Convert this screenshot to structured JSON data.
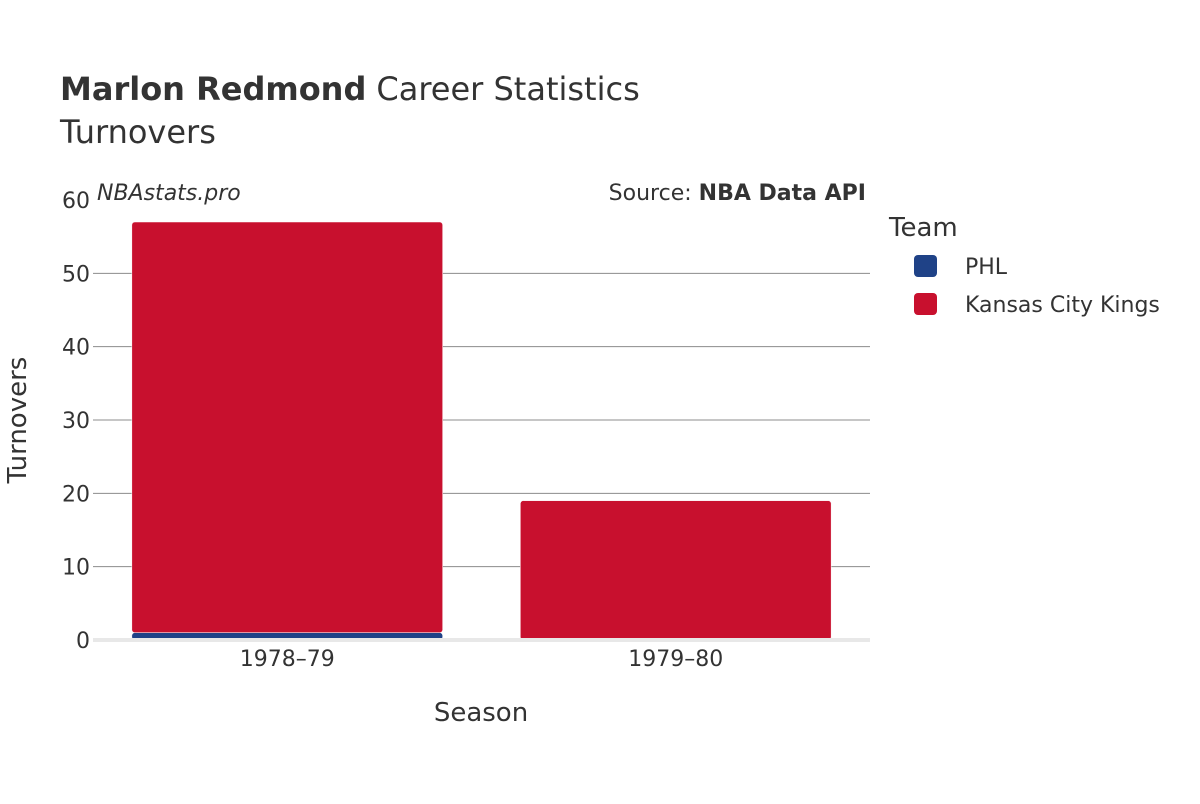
{
  "chart_data": {
    "type": "bar",
    "stacked": true,
    "title_bold": "Marlon Redmond",
    "title_rest": "Career Statistics",
    "subtitle": "Turnovers",
    "watermark": "NBAstats.pro",
    "source_prefix": "Source:",
    "source_name": "NBA Data API",
    "xlabel": "Season",
    "ylabel": "Turnovers",
    "ylim": [
      0,
      60
    ],
    "yticks": [
      0,
      10,
      20,
      30,
      40,
      50,
      60
    ],
    "grid": true,
    "legend_title": "Team",
    "legend_position": "right",
    "categories": [
      "1978–79",
      "1979–80"
    ],
    "series": [
      {
        "name": "PHL",
        "color": "#1f4287",
        "values": [
          1,
          0
        ]
      },
      {
        "name": "Kansas City Kings",
        "color": "#c8102e",
        "values": [
          56,
          19
        ]
      }
    ]
  }
}
